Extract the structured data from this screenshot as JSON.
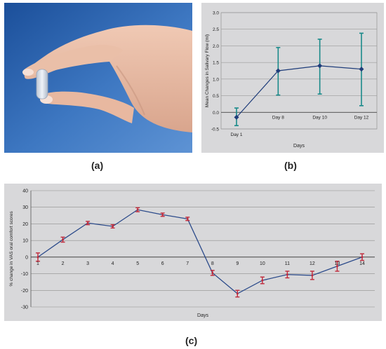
{
  "captions": {
    "a": "(a)",
    "b": "(b)",
    "c": "(c)"
  },
  "photo": {
    "icon": "hand-holding-lozenge"
  },
  "chart_data": [
    {
      "id": "b",
      "type": "line",
      "title": "",
      "xlabel": "Days",
      "ylabel": "Mean Changes in Salivary Flow (ml)",
      "categories": [
        "Day 1",
        "Day 8",
        "Day 10",
        "Day 12"
      ],
      "series": [
        {
          "values": [
            -0.15,
            1.25,
            1.4,
            1.3
          ],
          "error_low": [
            -0.4,
            0.52,
            0.55,
            0.2
          ],
          "error_high": [
            0.13,
            1.95,
            2.2,
            2.38
          ]
        }
      ],
      "ylim": [
        -0.5,
        3.0
      ],
      "yticks": [
        "-0.5",
        "0.0",
        "0.5",
        "1.0",
        "1.5",
        "2.0",
        "2.5",
        "3.0"
      ],
      "grid": true,
      "colors": {
        "line": "#1f3d7a",
        "marker": "#1f3d7a",
        "errorbar": "#1a8a8a",
        "background": "#d8d8da"
      }
    },
    {
      "id": "c",
      "type": "line",
      "title": "",
      "xlabel": "Days",
      "ylabel": "% change in VAS oral comfort scores",
      "categories": [
        "1",
        "2",
        "3",
        "4",
        "5",
        "6",
        "7",
        "8",
        "9",
        "10",
        "11",
        "12",
        "13",
        "14"
      ],
      "series": [
        {
          "values": [
            0,
            10.5,
            20.5,
            18.5,
            28.5,
            25.5,
            23,
            -9.5,
            -22,
            -14,
            -10.5,
            -11,
            -5.5,
            0
          ],
          "errors": [
            2.5,
            1.5,
            1,
            1,
            1.2,
            1,
            1,
            1.5,
            2,
            2,
            2,
            2.5,
            3,
            2
          ]
        }
      ],
      "ylim": [
        -30,
        40
      ],
      "yticks": [
        "-30",
        "-20",
        "-10",
        "0",
        "10",
        "20",
        "30",
        "40"
      ],
      "grid": true,
      "colors": {
        "line": "#2b4a8a",
        "errorbar": "#c0293a",
        "background": "#d8d8da"
      }
    }
  ]
}
